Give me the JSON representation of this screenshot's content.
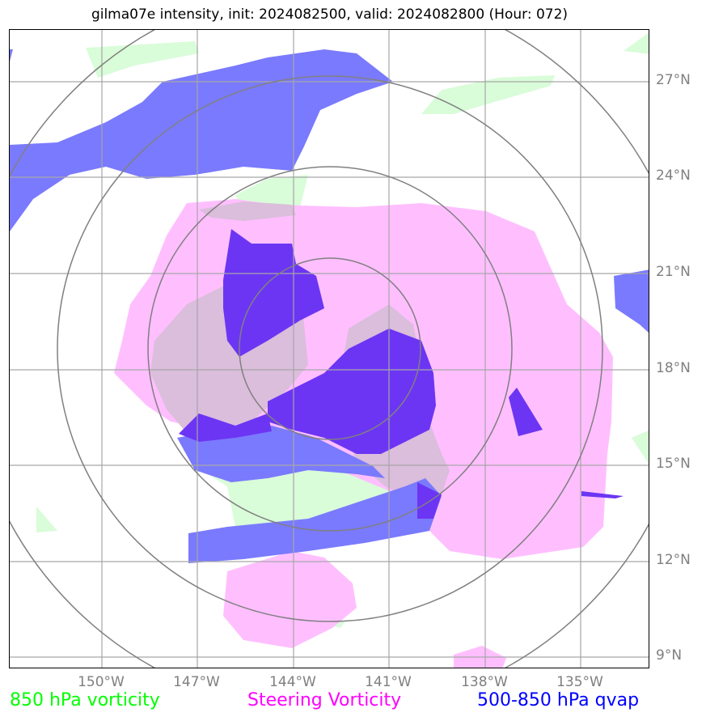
{
  "title": "gilma07e intensity, init: 2024082500, valid: 2024082800 (Hour: 072)",
  "lat_labels": [
    "27°N",
    "24°N",
    "21°N",
    "18°N",
    "15°N",
    "12°N",
    "9°N"
  ],
  "lon_labels": [
    "150°W",
    "147°W",
    "144°W",
    "141°W",
    "138°W",
    "135°W"
  ],
  "legend": {
    "vorticity": "850 hPa vorticity",
    "steering": "Steering Vorticity",
    "qvap": "500-850 hPa qvap"
  },
  "colors": {
    "vorticity": "#00ff00",
    "steering": "#ff00ff",
    "qvap": "#0000ff",
    "vorticity_fill": "#d9fcd9",
    "steering_fill": "#ffbfff",
    "qvap_fill": "#7a7afe",
    "qvap_dark": "#6c35f4",
    "overlap_fill": "#dbbddc",
    "grid": "#a6a6a6",
    "rings": "#808080"
  }
}
